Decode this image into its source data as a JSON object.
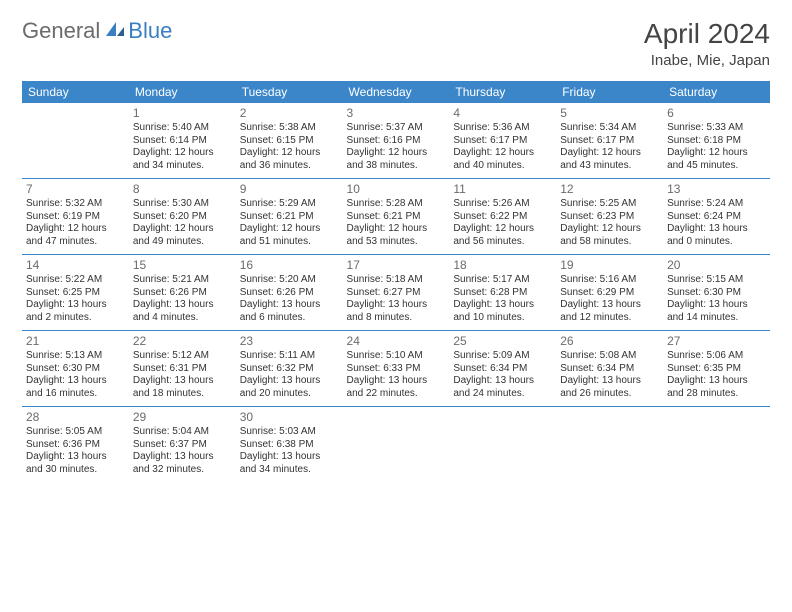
{
  "logo": {
    "part1": "General",
    "part2": "Blue"
  },
  "title": "April 2024",
  "location": "Inabe, Mie, Japan",
  "dayHeaders": [
    "Sunday",
    "Monday",
    "Tuesday",
    "Wednesday",
    "Thursday",
    "Friday",
    "Saturday"
  ],
  "colors": {
    "headerBg": "#3a86c8",
    "headerText": "#ffffff",
    "ruleColor": "#3a86c8",
    "textColor": "#333333",
    "titleColor": "#444444",
    "logoGray": "#6b6b6b",
    "logoBlue": "#3a7fc4"
  },
  "weeks": [
    [
      null,
      {
        "n": "1",
        "sr": "5:40 AM",
        "ss": "6:14 PM",
        "dl": "12 hours and 34 minutes."
      },
      {
        "n": "2",
        "sr": "5:38 AM",
        "ss": "6:15 PM",
        "dl": "12 hours and 36 minutes."
      },
      {
        "n": "3",
        "sr": "5:37 AM",
        "ss": "6:16 PM",
        "dl": "12 hours and 38 minutes."
      },
      {
        "n": "4",
        "sr": "5:36 AM",
        "ss": "6:17 PM",
        "dl": "12 hours and 40 minutes."
      },
      {
        "n": "5",
        "sr": "5:34 AM",
        "ss": "6:17 PM",
        "dl": "12 hours and 43 minutes."
      },
      {
        "n": "6",
        "sr": "5:33 AM",
        "ss": "6:18 PM",
        "dl": "12 hours and 45 minutes."
      }
    ],
    [
      {
        "n": "7",
        "sr": "5:32 AM",
        "ss": "6:19 PM",
        "dl": "12 hours and 47 minutes."
      },
      {
        "n": "8",
        "sr": "5:30 AM",
        "ss": "6:20 PM",
        "dl": "12 hours and 49 minutes."
      },
      {
        "n": "9",
        "sr": "5:29 AM",
        "ss": "6:21 PM",
        "dl": "12 hours and 51 minutes."
      },
      {
        "n": "10",
        "sr": "5:28 AM",
        "ss": "6:21 PM",
        "dl": "12 hours and 53 minutes."
      },
      {
        "n": "11",
        "sr": "5:26 AM",
        "ss": "6:22 PM",
        "dl": "12 hours and 56 minutes."
      },
      {
        "n": "12",
        "sr": "5:25 AM",
        "ss": "6:23 PM",
        "dl": "12 hours and 58 minutes."
      },
      {
        "n": "13",
        "sr": "5:24 AM",
        "ss": "6:24 PM",
        "dl": "13 hours and 0 minutes."
      }
    ],
    [
      {
        "n": "14",
        "sr": "5:22 AM",
        "ss": "6:25 PM",
        "dl": "13 hours and 2 minutes."
      },
      {
        "n": "15",
        "sr": "5:21 AM",
        "ss": "6:26 PM",
        "dl": "13 hours and 4 minutes."
      },
      {
        "n": "16",
        "sr": "5:20 AM",
        "ss": "6:26 PM",
        "dl": "13 hours and 6 minutes."
      },
      {
        "n": "17",
        "sr": "5:18 AM",
        "ss": "6:27 PM",
        "dl": "13 hours and 8 minutes."
      },
      {
        "n": "18",
        "sr": "5:17 AM",
        "ss": "6:28 PM",
        "dl": "13 hours and 10 minutes."
      },
      {
        "n": "19",
        "sr": "5:16 AM",
        "ss": "6:29 PM",
        "dl": "13 hours and 12 minutes."
      },
      {
        "n": "20",
        "sr": "5:15 AM",
        "ss": "6:30 PM",
        "dl": "13 hours and 14 minutes."
      }
    ],
    [
      {
        "n": "21",
        "sr": "5:13 AM",
        "ss": "6:30 PM",
        "dl": "13 hours and 16 minutes."
      },
      {
        "n": "22",
        "sr": "5:12 AM",
        "ss": "6:31 PM",
        "dl": "13 hours and 18 minutes."
      },
      {
        "n": "23",
        "sr": "5:11 AM",
        "ss": "6:32 PM",
        "dl": "13 hours and 20 minutes."
      },
      {
        "n": "24",
        "sr": "5:10 AM",
        "ss": "6:33 PM",
        "dl": "13 hours and 22 minutes."
      },
      {
        "n": "25",
        "sr": "5:09 AM",
        "ss": "6:34 PM",
        "dl": "13 hours and 24 minutes."
      },
      {
        "n": "26",
        "sr": "5:08 AM",
        "ss": "6:34 PM",
        "dl": "13 hours and 26 minutes."
      },
      {
        "n": "27",
        "sr": "5:06 AM",
        "ss": "6:35 PM",
        "dl": "13 hours and 28 minutes."
      }
    ],
    [
      {
        "n": "28",
        "sr": "5:05 AM",
        "ss": "6:36 PM",
        "dl": "13 hours and 30 minutes."
      },
      {
        "n": "29",
        "sr": "5:04 AM",
        "ss": "6:37 PM",
        "dl": "13 hours and 32 minutes."
      },
      {
        "n": "30",
        "sr": "5:03 AM",
        "ss": "6:38 PM",
        "dl": "13 hours and 34 minutes."
      },
      null,
      null,
      null,
      null
    ]
  ],
  "labels": {
    "sunrise": "Sunrise:",
    "sunset": "Sunset:",
    "daylight": "Daylight:"
  }
}
